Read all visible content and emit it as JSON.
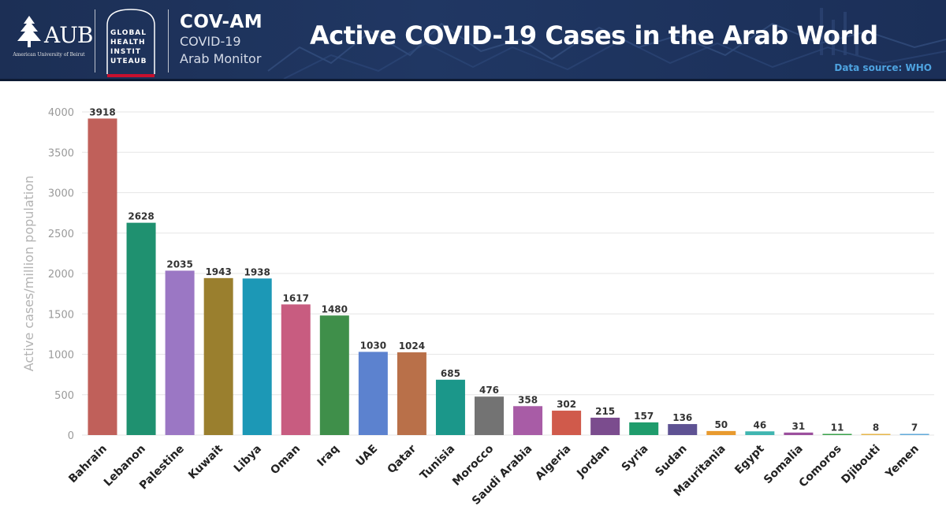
{
  "header": {
    "aub_logo_text": "AUB",
    "aub_logo_subtext": "American University of Beirut",
    "ghi_logo_lines": [
      "GLOBAL",
      "HEALTH",
      "INSTIT",
      "UTEAUB"
    ],
    "brand_title": "COV-AM",
    "brand_subtitle_line1": "COVID-19",
    "brand_subtitle_line2": "Arab Monitor",
    "title": "Active COVID-19 Cases in the Arab World",
    "source": "Data source: WHO"
  },
  "colors": {
    "banner": "#1f3560",
    "source_text": "#4ea3e0",
    "grid": "#e6e6e6",
    "axis_text": "#9a9a9a"
  },
  "chart_data": {
    "type": "bar",
    "title": "Active COVID-19 Cases in the Arab World",
    "ylabel": "Active cases/million population",
    "xlabel": "",
    "ylim": [
      0,
      4000
    ],
    "yticks": [
      0,
      500,
      1000,
      1500,
      2000,
      2500,
      3000,
      3500,
      4000
    ],
    "grid": true,
    "data_labels": true,
    "categories": [
      "Bahrain",
      "Lebanon",
      "Palestine",
      "Kuwait",
      "Libya",
      "Oman",
      "Iraq",
      "UAE",
      "Qatar",
      "Tunisia",
      "Morocco",
      "Saudi Arabia",
      "Algeria",
      "Jordan",
      "Syria",
      "Sudan",
      "Mauritania",
      "Egypt",
      "Somalia",
      "Comoros",
      "Djibouti",
      "Yemen"
    ],
    "values": [
      3918,
      2628,
      2035,
      1943,
      1938,
      1617,
      1480,
      1030,
      1024,
      685,
      476,
      358,
      302,
      215,
      157,
      136,
      50,
      46,
      31,
      11,
      8,
      7
    ],
    "bar_colors": [
      "#c0605a",
      "#1f9170",
      "#9b77c4",
      "#9a7f2e",
      "#1c98b6",
      "#c85c80",
      "#3f8f4a",
      "#5c82cf",
      "#b97049",
      "#1b978a",
      "#737373",
      "#a85ca6",
      "#d05a4b",
      "#7b4c8e",
      "#1f9c6c",
      "#5e5293",
      "#e89a2f",
      "#3fb5b0",
      "#9b4f9d",
      "#3aa14a",
      "#e6b64a",
      "#62aad9"
    ]
  }
}
